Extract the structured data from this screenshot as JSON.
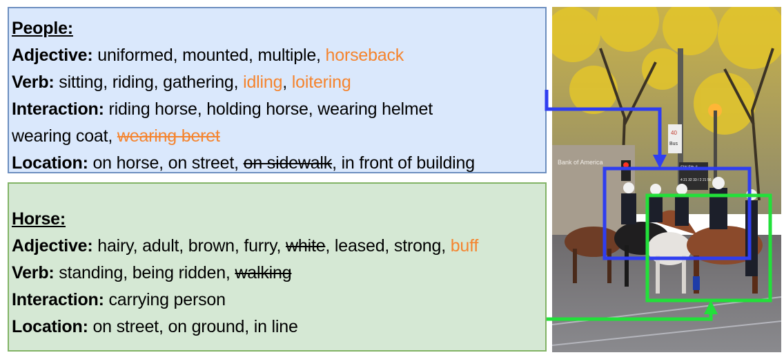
{
  "sections": [
    {
      "id": "people",
      "title": "People:",
      "rows": [
        {
          "label": "Adjective:",
          "tags": [
            {
              "text": "uniformed",
              "state": "base"
            },
            {
              "text": "mounted",
              "state": "base"
            },
            {
              "text": "multiple",
              "state": "base"
            },
            {
              "text": "horseback",
              "state": "new"
            }
          ]
        },
        {
          "label": "Verb:",
          "tags": [
            {
              "text": "sitting",
              "state": "base"
            },
            {
              "text": "riding",
              "state": "base"
            },
            {
              "text": "gathering",
              "state": "base"
            },
            {
              "text": "idling",
              "state": "new"
            },
            {
              "text": "loitering",
              "state": "new"
            }
          ]
        },
        {
          "label": "Interaction:",
          "tags": [
            {
              "text": "riding horse",
              "state": "base"
            },
            {
              "text": "holding horse",
              "state": "base"
            },
            {
              "text": "wearing helmet",
              "state": "base"
            },
            {
              "text": "wearing coat",
              "state": "base",
              "break_before": true
            },
            {
              "text": "wearing beret",
              "state": "new-removed"
            }
          ]
        },
        {
          "label": "Location:",
          "tags": [
            {
              "text": "on horse",
              "state": "base"
            },
            {
              "text": "on street",
              "state": "base"
            },
            {
              "text": "on sidewalk",
              "state": "removed"
            },
            {
              "text": "in front of building",
              "state": "base"
            }
          ]
        }
      ]
    },
    {
      "id": "horse",
      "title": "Horse:",
      "rows": [
        {
          "label": "Adjective:",
          "tags": [
            {
              "text": "hairy",
              "state": "base"
            },
            {
              "text": "adult",
              "state": "base"
            },
            {
              "text": "brown",
              "state": "base"
            },
            {
              "text": "furry",
              "state": "base"
            },
            {
              "text": "white",
              "state": "removed"
            },
            {
              "text": "leased",
              "state": "base"
            },
            {
              "text": "strong",
              "state": "base"
            },
            {
              "text": "buff",
              "state": "new"
            }
          ]
        },
        {
          "label": "Verb:",
          "tags": [
            {
              "text": "standing",
              "state": "base"
            },
            {
              "text": "being ridden",
              "state": "base"
            },
            {
              "text": "walking",
              "state": "removed"
            }
          ]
        },
        {
          "label": "Interaction:",
          "tags": [
            {
              "text": "carrying person",
              "state": "base"
            }
          ]
        },
        {
          "label": "Location:",
          "tags": [
            {
              "text": "on street",
              "state": "base"
            },
            {
              "text": "on ground",
              "state": "base"
            },
            {
              "text": "in line",
              "state": "base"
            }
          ]
        }
      ]
    }
  ],
  "photo_signs": {
    "speed": "40",
    "bus": "Bus",
    "bank": "Bank of America",
    "street": "SW 5th &",
    "bus_times": "4 21 32 33 / 2 21 56"
  },
  "colors": {
    "people_panel_bg": "#dae8fc",
    "people_panel_border": "#6c8ebf",
    "horse_panel_bg": "#d5e8d4",
    "horse_panel_border": "#82b366",
    "new_tag": "#f5842e",
    "people_box": "#2f3ef0",
    "horse_box": "#22e03a"
  }
}
